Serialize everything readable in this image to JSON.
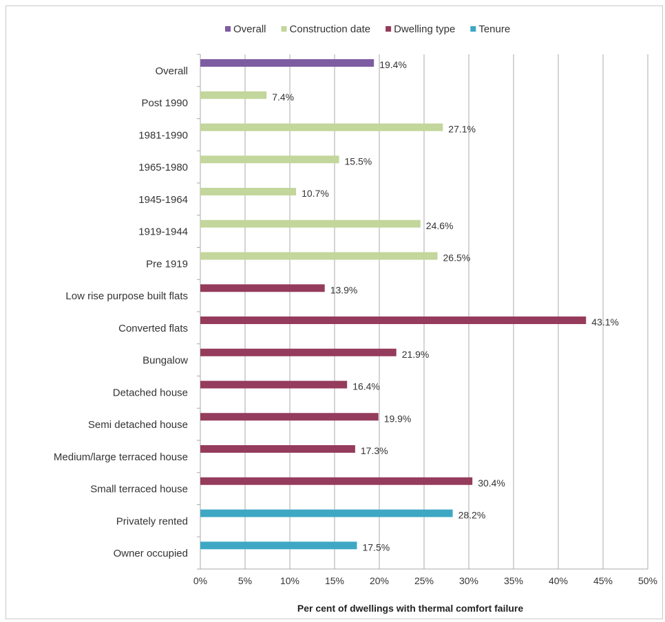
{
  "chart_data": {
    "type": "bar",
    "orientation": "horizontal",
    "xlabel": "Per cent of dwellings with thermal comfort failure",
    "ylabel": "",
    "xlim": [
      0,
      50
    ],
    "x_ticks": [
      "0%",
      "5%",
      "10%",
      "15%",
      "20%",
      "25%",
      "30%",
      "35%",
      "40%",
      "45%",
      "50%"
    ],
    "grid": "vertical gridlines on",
    "legend_position": "top",
    "legend": [
      {
        "name": "Overall",
        "color": "#7e5ca2"
      },
      {
        "name": "Construction date",
        "color": "#c3d69b"
      },
      {
        "name": "Dwelling type",
        "color": "#953b5c"
      },
      {
        "name": "Tenure",
        "color": "#3ea8c4"
      }
    ],
    "categories": [
      {
        "label": "Overall",
        "value": 19.4,
        "value_label": "19.4%",
        "series": "Overall"
      },
      {
        "label": "Post 1990",
        "value": 7.4,
        "value_label": "7.4%",
        "series": "Construction date"
      },
      {
        "label": "1981-1990",
        "value": 27.1,
        "value_label": "27.1%",
        "series": "Construction date"
      },
      {
        "label": "1965-1980",
        "value": 15.5,
        "value_label": "15.5%",
        "series": "Construction date"
      },
      {
        "label": "1945-1964",
        "value": 10.7,
        "value_label": "10.7%",
        "series": "Construction date"
      },
      {
        "label": "1919-1944",
        "value": 24.6,
        "value_label": "24.6%",
        "series": "Construction date"
      },
      {
        "label": "Pre 1919",
        "value": 26.5,
        "value_label": "26.5%",
        "series": "Construction date"
      },
      {
        "label": "Low rise purpose built flats",
        "value": 13.9,
        "value_label": "13.9%",
        "series": "Dwelling type"
      },
      {
        "label": "Converted flats",
        "value": 43.1,
        "value_label": "43.1%",
        "series": "Dwelling type"
      },
      {
        "label": "Bungalow",
        "value": 21.9,
        "value_label": "21.9%",
        "series": "Dwelling type"
      },
      {
        "label": "Detached house",
        "value": 16.4,
        "value_label": "16.4%",
        "series": "Dwelling type"
      },
      {
        "label": "Semi detached house",
        "value": 19.9,
        "value_label": "19.9%",
        "series": "Dwelling type"
      },
      {
        "label": "Medium/large terraced house",
        "value": 17.3,
        "value_label": "17.3%",
        "series": "Dwelling type"
      },
      {
        "label": "Small terraced house",
        "value": 30.4,
        "value_label": "30.4%",
        "series": "Dwelling type"
      },
      {
        "label": "Privately rented",
        "value": 28.2,
        "value_label": "28.2%",
        "series": "Tenure"
      },
      {
        "label": "Owner occupied",
        "value": 17.5,
        "value_label": "17.5%",
        "series": "Tenure"
      }
    ]
  }
}
